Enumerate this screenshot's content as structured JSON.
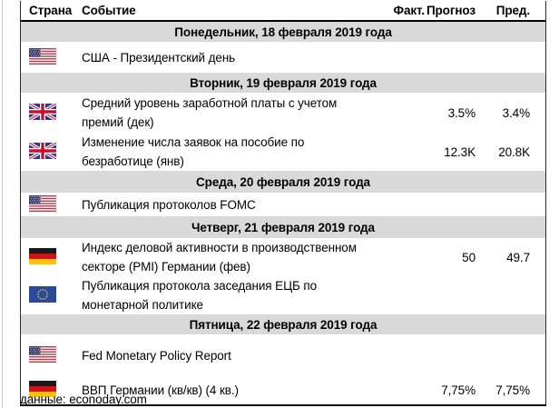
{
  "colors": {
    "day_row_bg": "#d9d9d9",
    "border": "#000000",
    "text": "#000000"
  },
  "table": {
    "columns": [
      "Страна",
      "Событие",
      "Факт.",
      "Прогноз",
      "Пред."
    ],
    "rows": [
      {
        "type": "day",
        "label": "Понедельник, 18 февраля 2019 года",
        "h": 22
      },
      {
        "type": "event",
        "flag": "us",
        "event": "США - Президентский день",
        "fact": "",
        "forecast": "",
        "prev": "",
        "h": 34
      },
      {
        "type": "day",
        "label": "Вторник, 19 февраля 2019 года",
        "h": 22
      },
      {
        "type": "event",
        "flag": "uk",
        "event": "Средний уровень заработной платы с учетом премий (дек)",
        "fact": "",
        "forecast": "3.5%",
        "prev": "3.4%",
        "h": 44
      },
      {
        "type": "event",
        "flag": "uk",
        "event": "Изменение числа заявок на пособие по безработице (янв)",
        "fact": "",
        "forecast": "12.3K",
        "prev": "20.8K",
        "h": 38
      },
      {
        "type": "day",
        "label": "Среда, 20 февраля 2019 года",
        "h": 24
      },
      {
        "type": "event",
        "flag": "us",
        "event": "Публикация протоколов FOMC",
        "fact": "",
        "forecast": "",
        "prev": "",
        "h": 26
      },
      {
        "type": "day",
        "label": "Четверг, 21 февраля 2019 года",
        "h": 24
      },
      {
        "type": "event",
        "flag": "de",
        "event": "Индекс деловой активности в производственном секторе (PMI) Германии (фев)",
        "fact": "",
        "forecast": "50",
        "prev": "49.7",
        "h": 38
      },
      {
        "type": "event",
        "flag": "eu",
        "event": "Публикация протокола заседания ЕЦБ по монетарной политике",
        "fact": "",
        "forecast": "",
        "prev": "",
        "h": 34
      },
      {
        "type": "day",
        "label": "Пятница, 22 февраля 2019 года",
        "h": 22
      },
      {
        "type": "event",
        "flag": "us",
        "event": "Fed Monetary Policy Report",
        "fact": "",
        "forecast": "",
        "prev": "",
        "h": 46
      },
      {
        "type": "event",
        "flag": "de",
        "event": "ВВП Германии (кв/кв) (4 кв.)",
        "fact": "",
        "forecast": "7,75%",
        "prev": "7,75%",
        "h": 31
      }
    ]
  },
  "footer": {
    "source": "данные: econoday.com"
  }
}
